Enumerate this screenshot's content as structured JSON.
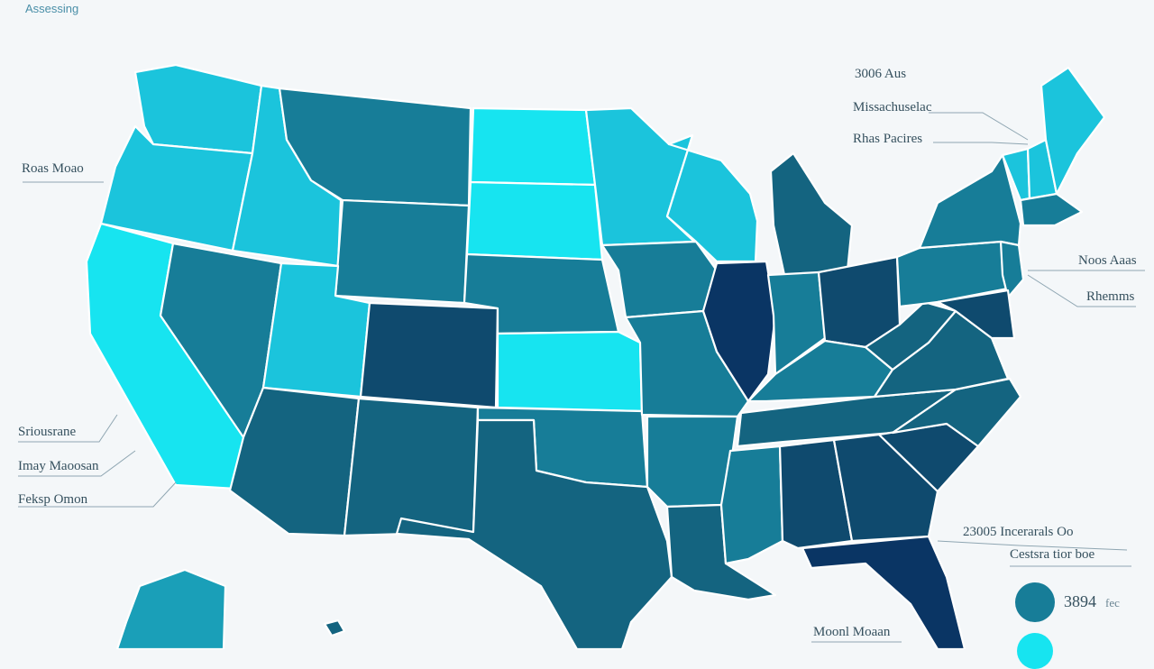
{
  "header": {
    "title": "Assessing"
  },
  "colors": {
    "background": "#f4f7f9",
    "scale": [
      "#17e4f0",
      "#1bc4dc",
      "#1a9fb8",
      "#177d98",
      "#146480",
      "#0f4a6e",
      "#0a3564"
    ]
  },
  "labels": {
    "top_right_1": "3006 Aus",
    "top_right_2": "Missachuselac",
    "top_right_3": "Rhas Pacires",
    "left_1": "Roas Moao",
    "left_2": "Sriousrane",
    "left_3": "Imay Maoosan",
    "left_4": "Feksp Omon",
    "right_mid_1": "Noos Aaas",
    "right_mid_2": "Rhemms",
    "bottom_right_1": "23005 Incerarals Oo",
    "bottom_right_2": "Cestsra tior boe",
    "bottom_center": "Moonl Moaan",
    "legend_value": "3894",
    "legend_suffix": "fec"
  },
  "states": [
    {
      "name": "Washington",
      "level": 1
    },
    {
      "name": "Oregon",
      "level": 1
    },
    {
      "name": "California",
      "level": 0
    },
    {
      "name": "Idaho",
      "level": 1
    },
    {
      "name": "Nevada",
      "level": 3
    },
    {
      "name": "Montana",
      "level": 3
    },
    {
      "name": "Wyoming",
      "level": 3
    },
    {
      "name": "Utah",
      "level": 1
    },
    {
      "name": "Arizona",
      "level": 4
    },
    {
      "name": "Colorado",
      "level": 5
    },
    {
      "name": "New Mexico",
      "level": 4
    },
    {
      "name": "North Dakota",
      "level": 0
    },
    {
      "name": "South Dakota",
      "level": 0
    },
    {
      "name": "Nebraska",
      "level": 3
    },
    {
      "name": "Kansas",
      "level": 0
    },
    {
      "name": "Oklahoma",
      "level": 3
    },
    {
      "name": "Texas",
      "level": 4
    },
    {
      "name": "Minnesota",
      "level": 1
    },
    {
      "name": "Iowa",
      "level": 3
    },
    {
      "name": "Missouri",
      "level": 3
    },
    {
      "name": "Arkansas",
      "level": 3
    },
    {
      "name": "Louisiana",
      "level": 4
    },
    {
      "name": "Wisconsin",
      "level": 1
    },
    {
      "name": "Illinois",
      "level": 6
    },
    {
      "name": "Michigan",
      "level": 4
    },
    {
      "name": "Indiana",
      "level": 3
    },
    {
      "name": "Ohio",
      "level": 5
    },
    {
      "name": "Kentucky",
      "level": 3
    },
    {
      "name": "Tennessee",
      "level": 4
    },
    {
      "name": "Mississippi",
      "level": 3
    },
    {
      "name": "Alabama",
      "level": 5
    },
    {
      "name": "Georgia",
      "level": 5
    },
    {
      "name": "Florida",
      "level": 6
    },
    {
      "name": "South Carolina",
      "level": 5
    },
    {
      "name": "North Carolina",
      "level": 4
    },
    {
      "name": "Virginia",
      "level": 4
    },
    {
      "name": "West Virginia",
      "level": 4
    },
    {
      "name": "Pennsylvania",
      "level": 3
    },
    {
      "name": "New York",
      "level": 3
    },
    {
      "name": "Vermont",
      "level": 1
    },
    {
      "name": "New Hampshire",
      "level": 1
    },
    {
      "name": "Maine",
      "level": 1
    },
    {
      "name": "Massachusetts",
      "level": 3
    },
    {
      "name": "New Jersey",
      "level": 3
    },
    {
      "name": "Maryland",
      "level": 5
    },
    {
      "name": "Alaska",
      "level": 2
    },
    {
      "name": "Hawaii",
      "level": 4
    }
  ]
}
